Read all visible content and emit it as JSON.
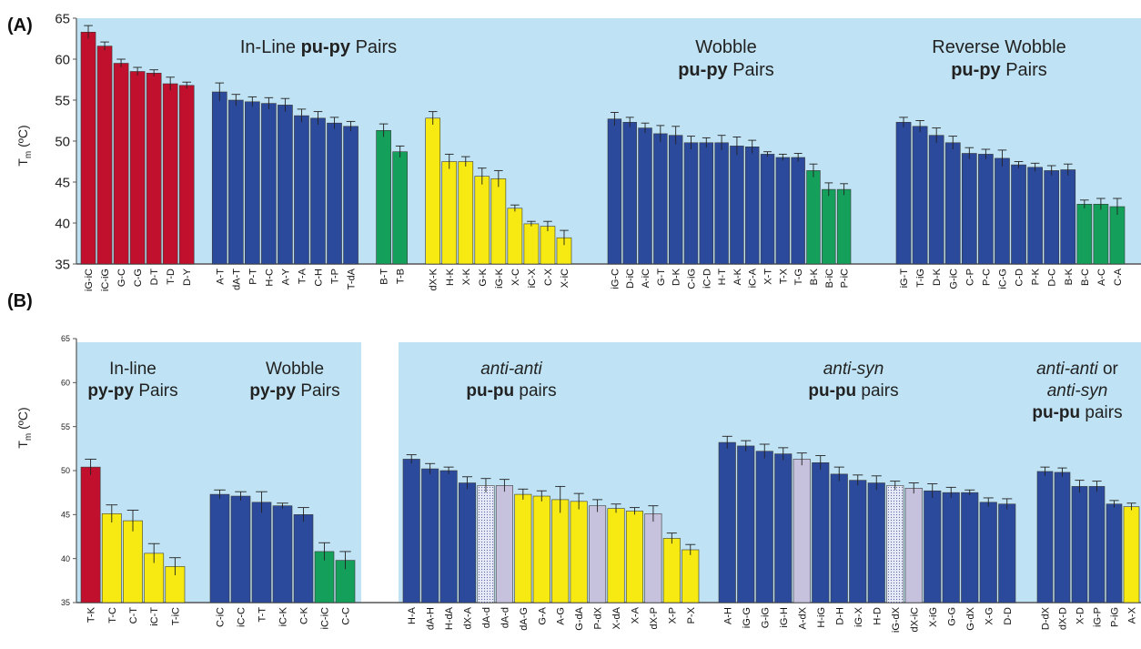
{
  "colors": {
    "panel_bg": "#bfe3f4",
    "red": "#c0102d",
    "blue": "#2c4a9c",
    "green": "#14a05a",
    "yellow": "#f6ea12",
    "lavender": "#c6c1dc",
    "dotted": "#dfe3f2",
    "axis": "#555555"
  },
  "chart_data": [
    {
      "panel": "(A)",
      "type": "bar",
      "ylabel": "T",
      "ylabel_sub": "m",
      "ylabel_unit": " (ºC)",
      "ylim": [
        35,
        65
      ],
      "yticks": [
        35,
        40,
        45,
        50,
        55,
        60,
        65
      ],
      "groups": [
        {
          "title": [
            [
              {
                "t": "In-Line "
              },
              {
                "t": "pu-py",
                "b": true
              },
              {
                "t": " Pairs"
              }
            ]
          ],
          "bars": [
            {
              "label": "iG-iC",
              "value": 63.3,
              "err": 0.8,
              "color": "red"
            },
            {
              "label": "iC-iG",
              "value": 61.6,
              "err": 0.5,
              "color": "red"
            },
            {
              "label": "G-C",
              "value": 59.5,
              "err": 0.5,
              "color": "red"
            },
            {
              "label": "C-G",
              "value": 58.5,
              "err": 0.5,
              "color": "red"
            },
            {
              "label": "D-T",
              "value": 58.3,
              "err": 0.4,
              "color": "red"
            },
            {
              "label": "T-D",
              "value": 57.0,
              "err": 0.8,
              "color": "red"
            },
            {
              "label": "D-Y",
              "value": 56.8,
              "err": 0.4,
              "color": "red"
            },
            {
              "gap": true
            },
            {
              "label": "A-T",
              "value": 56.0,
              "err": 1.1,
              "color": "blue"
            },
            {
              "label": "dA-T",
              "value": 55.0,
              "err": 0.7,
              "color": "blue"
            },
            {
              "label": "P-T",
              "value": 54.8,
              "err": 0.6,
              "color": "blue"
            },
            {
              "label": "H-C",
              "value": 54.6,
              "err": 0.7,
              "color": "blue"
            },
            {
              "label": "A-Y",
              "value": 54.4,
              "err": 0.8,
              "color": "blue"
            },
            {
              "label": "T-A",
              "value": 53.1,
              "err": 0.8,
              "color": "blue"
            },
            {
              "label": "C-H",
              "value": 52.8,
              "err": 0.8,
              "color": "blue"
            },
            {
              "label": "T-P",
              "value": 52.2,
              "err": 0.7,
              "color": "blue"
            },
            {
              "label": "T-dA",
              "value": 51.8,
              "err": 0.6,
              "color": "blue"
            },
            {
              "gap": true
            },
            {
              "label": "B-T",
              "value": 51.3,
              "err": 0.8,
              "color": "green"
            },
            {
              "label": "T-B",
              "value": 48.7,
              "err": 0.7,
              "color": "green"
            },
            {
              "gap": true
            },
            {
              "label": "dX-K",
              "value": 52.8,
              "err": 0.8,
              "color": "yellow"
            },
            {
              "label": "H-K",
              "value": 47.5,
              "err": 0.9,
              "color": "yellow"
            },
            {
              "label": "X-K",
              "value": 47.5,
              "err": 0.6,
              "color": "yellow"
            },
            {
              "label": "G-K",
              "value": 45.7,
              "err": 1.0,
              "color": "yellow"
            },
            {
              "label": "iG-K",
              "value": 45.4,
              "err": 1.0,
              "color": "yellow"
            },
            {
              "label": "X-C",
              "value": 41.8,
              "err": 0.4,
              "color": "yellow"
            },
            {
              "label": "iC-X",
              "value": 39.9,
              "err": 0.3,
              "color": "yellow"
            },
            {
              "label": "C-X",
              "value": 39.6,
              "err": 0.6,
              "color": "yellow"
            },
            {
              "label": "X-iC",
              "value": 38.2,
              "err": 0.9,
              "color": "yellow"
            }
          ]
        },
        {
          "title": [
            [
              {
                "t": "Wobble"
              }
            ],
            [
              {
                "t": "pu-py",
                "b": true
              },
              {
                "t": " Pairs"
              }
            ]
          ],
          "bars": [
            {
              "label": "iG-C",
              "value": 52.7,
              "err": 0.8,
              "color": "blue"
            },
            {
              "label": "D-iC",
              "value": 52.3,
              "err": 0.6,
              "color": "blue"
            },
            {
              "label": "A-iC",
              "value": 51.6,
              "err": 0.6,
              "color": "blue"
            },
            {
              "label": "G-T",
              "value": 50.9,
              "err": 1.0,
              "color": "blue"
            },
            {
              "label": "D-K",
              "value": 50.7,
              "err": 1.1,
              "color": "blue"
            },
            {
              "label": "C-iG",
              "value": 49.8,
              "err": 0.8,
              "color": "blue"
            },
            {
              "label": "iC-D",
              "value": 49.8,
              "err": 0.6,
              "color": "blue"
            },
            {
              "label": "H-T",
              "value": 49.8,
              "err": 0.9,
              "color": "blue"
            },
            {
              "label": "A-K",
              "value": 49.4,
              "err": 1.1,
              "color": "blue"
            },
            {
              "label": "iC-A",
              "value": 49.3,
              "err": 0.8,
              "color": "blue"
            },
            {
              "label": "X-T",
              "value": 48.4,
              "err": 0.3,
              "color": "blue"
            },
            {
              "label": "T-X",
              "value": 48.0,
              "err": 0.4,
              "color": "blue"
            },
            {
              "label": "T-G",
              "value": 48.0,
              "err": 0.5,
              "color": "blue"
            },
            {
              "label": "B-K",
              "value": 46.4,
              "err": 0.8,
              "color": "green"
            },
            {
              "label": "B-iC",
              "value": 44.1,
              "err": 0.8,
              "color": "green"
            },
            {
              "label": "P-iC",
              "value": 44.1,
              "err": 0.7,
              "color": "green"
            }
          ]
        },
        {
          "title": [
            [
              {
                "t": "Reverse Wobble"
              }
            ],
            [
              {
                "t": "pu-py",
                "b": true
              },
              {
                "t": " Pairs"
              }
            ]
          ],
          "bars": [
            {
              "label": "iG-T",
              "value": 52.3,
              "err": 0.6,
              "color": "blue"
            },
            {
              "label": "T-iG",
              "value": 51.8,
              "err": 0.7,
              "color": "blue"
            },
            {
              "label": "D-K",
              "value": 50.7,
              "err": 0.9,
              "color": "blue"
            },
            {
              "label": "G-iC",
              "value": 49.8,
              "err": 0.8,
              "color": "blue"
            },
            {
              "label": "C-P",
              "value": 48.5,
              "err": 0.7,
              "color": "blue"
            },
            {
              "label": "P-C",
              "value": 48.4,
              "err": 0.6,
              "color": "blue"
            },
            {
              "label": "iC-G",
              "value": 47.9,
              "err": 1.0,
              "color": "blue"
            },
            {
              "label": "C-D",
              "value": 47.1,
              "err": 0.4,
              "color": "blue"
            },
            {
              "label": "P-K",
              "value": 46.8,
              "err": 0.5,
              "color": "blue"
            },
            {
              "label": "D-C",
              "value": 46.4,
              "err": 0.6,
              "color": "blue"
            },
            {
              "label": "B-K",
              "value": 46.5,
              "err": 0.7,
              "color": "blue"
            },
            {
              "label": "B-C",
              "value": 42.3,
              "err": 0.5,
              "color": "green"
            },
            {
              "label": "A-C",
              "value": 42.3,
              "err": 0.7,
              "color": "green"
            },
            {
              "label": "C-A",
              "value": 42.0,
              "err": 1.0,
              "color": "green"
            }
          ]
        }
      ]
    },
    {
      "panel": "(B)",
      "type": "bar",
      "ylabel": "T",
      "ylabel_sub": "m",
      "ylabel_unit": " (ºC)",
      "ylim": [
        35,
        65
      ],
      "yticks": [
        35,
        40,
        45,
        50,
        55,
        60,
        65
      ],
      "groups": [
        {
          "title": [
            [
              {
                "t": "In-line"
              }
            ],
            [
              {
                "t": "py-py",
                "b": true
              },
              {
                "t": " Pairs"
              }
            ]
          ],
          "bars": [
            {
              "label": "T-K",
              "value": 50.4,
              "err": 0.9,
              "color": "red"
            },
            {
              "label": "T-C",
              "value": 45.1,
              "err": 1.0,
              "color": "yellow"
            },
            {
              "label": "C-T",
              "value": 44.3,
              "err": 1.2,
              "color": "yellow"
            },
            {
              "label": "iC-T",
              "value": 40.6,
              "err": 1.1,
              "color": "yellow"
            },
            {
              "label": "T-iC",
              "value": 39.1,
              "err": 1.0,
              "color": "yellow"
            }
          ]
        },
        {
          "title": [
            [
              {
                "t": "Wobble"
              }
            ],
            [
              {
                "t": "py-py",
                "b": true
              },
              {
                "t": " Pairs"
              }
            ]
          ],
          "bars": [
            {
              "label": "C-iC",
              "value": 47.3,
              "err": 0.5,
              "color": "blue"
            },
            {
              "label": "iC-C",
              "value": 47.1,
              "err": 0.5,
              "color": "blue"
            },
            {
              "label": "T-T",
              "value": 46.4,
              "err": 1.2,
              "color": "blue"
            },
            {
              "label": "iC-K",
              "value": 46.0,
              "err": 0.3,
              "color": "blue"
            },
            {
              "label": "C-K",
              "value": 45.0,
              "err": 0.8,
              "color": "blue"
            },
            {
              "label": "iC-iC",
              "value": 40.8,
              "err": 1.0,
              "color": "green"
            },
            {
              "label": "C-C",
              "value": 39.8,
              "err": 1.0,
              "color": "green"
            }
          ]
        },
        {
          "title": [
            [
              {
                "t": "anti-anti",
                "i": true
              }
            ],
            [
              {
                "t": "pu-pu",
                "b": true
              },
              {
                "t": " pairs"
              }
            ]
          ],
          "bars": [
            {
              "label": "H-A",
              "value": 51.3,
              "err": 0.5,
              "color": "blue"
            },
            {
              "label": "dA-H",
              "value": 50.2,
              "err": 0.6,
              "color": "blue"
            },
            {
              "label": "H-dA",
              "value": 50.0,
              "err": 0.4,
              "color": "blue"
            },
            {
              "label": "dX-A",
              "value": 48.6,
              "err": 0.7,
              "color": "blue"
            },
            {
              "label": "dA-d",
              "value": 48.3,
              "err": 0.8,
              "color": "dotted"
            },
            {
              "label": "dA-d",
              "value": 48.3,
              "err": 0.7,
              "color": "lavender"
            },
            {
              "label": "dA-G",
              "value": 47.3,
              "err": 0.6,
              "color": "yellow"
            },
            {
              "label": "G-A",
              "value": 47.1,
              "err": 0.6,
              "color": "yellow"
            },
            {
              "label": "A-G",
              "value": 46.7,
              "err": 1.5,
              "color": "yellow"
            },
            {
              "label": "G-dA",
              "value": 46.5,
              "err": 0.9,
              "color": "yellow"
            },
            {
              "label": "P-dX",
              "value": 46.0,
              "err": 0.7,
              "color": "lavender"
            },
            {
              "label": "X-dA",
              "value": 45.7,
              "err": 0.5,
              "color": "yellow"
            },
            {
              "label": "X-A",
              "value": 45.4,
              "err": 0.4,
              "color": "yellow"
            },
            {
              "label": "dX-P",
              "value": 45.1,
              "err": 0.9,
              "color": "lavender"
            },
            {
              "label": "X-P",
              "value": 42.3,
              "err": 0.6,
              "color": "yellow"
            },
            {
              "label": "P-X",
              "value": 41.0,
              "err": 0.6,
              "color": "yellow"
            }
          ]
        },
        {
          "title": [
            [
              {
                "t": "anti-syn",
                "i": true
              }
            ],
            [
              {
                "t": "pu-pu",
                "b": true
              },
              {
                "t": " pairs"
              }
            ]
          ],
          "bars": [
            {
              "label": "A-H",
              "value": 53.2,
              "err": 0.7,
              "color": "blue"
            },
            {
              "label": "iG-G",
              "value": 52.8,
              "err": 0.6,
              "color": "blue"
            },
            {
              "label": "G-iG",
              "value": 52.2,
              "err": 0.8,
              "color": "blue"
            },
            {
              "label": "iG-H",
              "value": 51.9,
              "err": 0.7,
              "color": "blue"
            },
            {
              "label": "A-dX",
              "value": 51.3,
              "err": 0.7,
              "color": "lavender"
            },
            {
              "label": "H-iG",
              "value": 50.9,
              "err": 0.8,
              "color": "blue"
            },
            {
              "label": "D-H",
              "value": 49.6,
              "err": 0.8,
              "color": "blue"
            },
            {
              "label": "iG-X",
              "value": 48.9,
              "err": 0.6,
              "color": "blue"
            },
            {
              "label": "H-D",
              "value": 48.6,
              "err": 0.8,
              "color": "blue"
            },
            {
              "label": "iG-dX",
              "value": 48.3,
              "err": 0.5,
              "color": "dotted"
            },
            {
              "label": "dX-iC",
              "value": 48.0,
              "err": 0.6,
              "color": "lavender"
            },
            {
              "label": "X-iG",
              "value": 47.7,
              "err": 0.8,
              "color": "blue"
            },
            {
              "label": "G-G",
              "value": 47.5,
              "err": 0.6,
              "color": "blue"
            },
            {
              "label": "G-dX",
              "value": 47.5,
              "err": 0.3,
              "color": "blue"
            },
            {
              "label": "X-G",
              "value": 46.4,
              "err": 0.5,
              "color": "blue"
            },
            {
              "label": "D-D",
              "value": 46.2,
              "err": 0.6,
              "color": "blue"
            }
          ]
        },
        {
          "title": [
            [
              {
                "t": "anti-anti",
                "i": true
              },
              {
                "t": " or"
              }
            ],
            [
              {
                "t": "anti-syn",
                "i": true
              }
            ],
            [
              {
                "t": "pu-pu",
                "b": true
              },
              {
                "t": " pairs"
              }
            ]
          ],
          "bars": [
            {
              "label": "D-dX",
              "value": 49.9,
              "err": 0.5,
              "color": "blue"
            },
            {
              "label": "dX-D",
              "value": 49.8,
              "err": 0.5,
              "color": "blue"
            },
            {
              "label": "X-D",
              "value": 48.2,
              "err": 0.7,
              "color": "blue"
            },
            {
              "label": "iG-P",
              "value": 48.2,
              "err": 0.6,
              "color": "blue"
            },
            {
              "label": "P-iG",
              "value": 46.2,
              "err": 0.4,
              "color": "blue"
            },
            {
              "label": "A-X",
              "value": 45.9,
              "err": 0.4,
              "color": "yellow"
            }
          ]
        }
      ]
    }
  ]
}
